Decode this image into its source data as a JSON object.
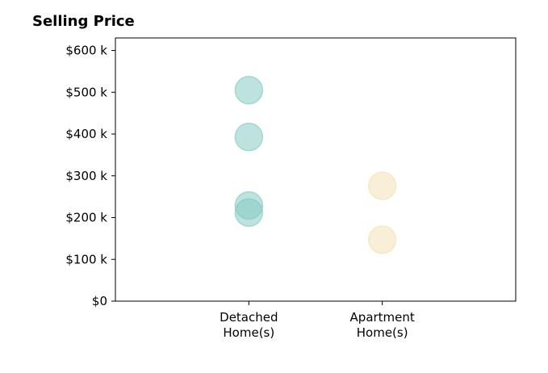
{
  "chart_data": {
    "type": "scatter",
    "title": "Selling Price",
    "xlabel": "",
    "ylabel": "",
    "categories": [
      "Detached\nHome(s)",
      "Apartment\nHome(s)"
    ],
    "category_range": [
      -1,
      2
    ],
    "ylim": [
      0,
      630000
    ],
    "yticks": [
      {
        "value": 0,
        "label": "$0"
      },
      {
        "value": 100000,
        "label": "$100 k"
      },
      {
        "value": 200000,
        "label": "$200 k"
      },
      {
        "value": 300000,
        "label": "$300 k"
      },
      {
        "value": 400000,
        "label": "$400 k"
      },
      {
        "value": 500000,
        "label": "$500 k"
      },
      {
        "value": 600000,
        "label": "$600 k"
      }
    ],
    "grid": false,
    "legend": "none",
    "series": [
      {
        "category": "Detached\nHome(s)",
        "color": "#7ec8bd",
        "values": [
          505000,
          393000,
          229000,
          212000
        ]
      },
      {
        "category": "Apartment\nHome(s)",
        "color": "#f3deb0",
        "values": [
          276000,
          147000
        ]
      }
    ]
  }
}
